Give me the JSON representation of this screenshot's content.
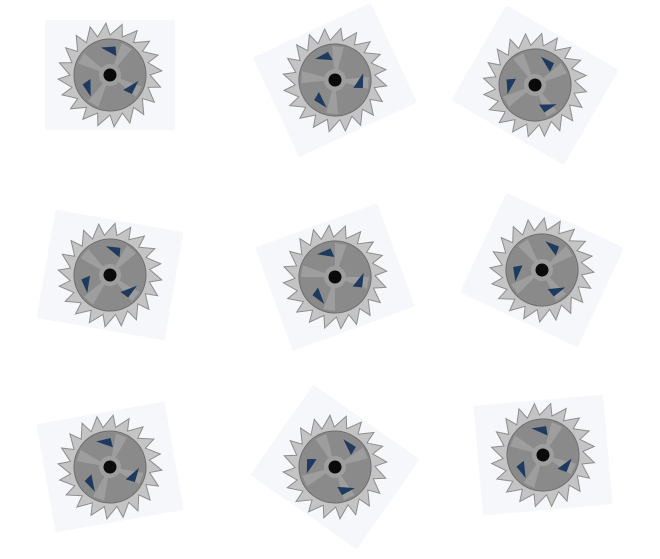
{
  "puzzle": {
    "tiles": [
      {
        "icon": "saw-blade-icon",
        "rotation_deg": 0
      },
      {
        "icon": "saw-blade-icon",
        "rotation_deg": -25
      },
      {
        "icon": "saw-blade-icon",
        "rotation_deg": 30
      },
      {
        "icon": "saw-blade-icon",
        "rotation_deg": 10
      },
      {
        "icon": "saw-blade-icon",
        "rotation_deg": -20
      },
      {
        "icon": "saw-blade-icon",
        "rotation_deg": 25
      },
      {
        "icon": "saw-blade-icon",
        "rotation_deg": -10
      },
      {
        "icon": "saw-blade-icon",
        "rotation_deg": 35
      },
      {
        "icon": "saw-blade-icon",
        "rotation_deg": -5
      }
    ],
    "colors": {
      "tile_background": "#f6f7fb",
      "blade_teeth": "#c4c4c4",
      "blade_body": "#8a8a8a",
      "blade_slots": "#1e3a5f",
      "hub": "#0a0a0a"
    }
  }
}
